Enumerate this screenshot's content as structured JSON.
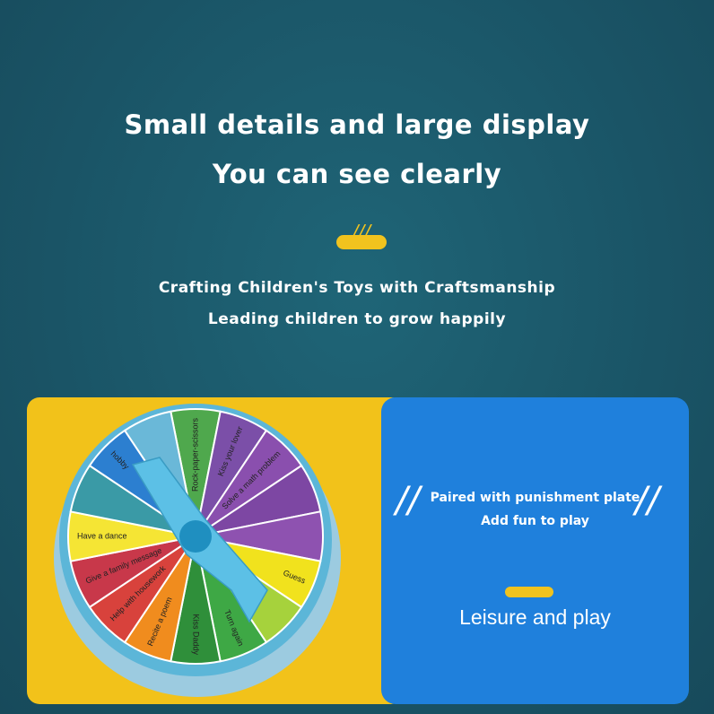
{
  "header": {
    "title_lines": [
      "Small details and large display",
      "You can see clearly"
    ],
    "mark": "///",
    "subtitle_lines": [
      "Crafting Children's Toys with Craftsmanship",
      "Leading children to grow happily"
    ]
  },
  "wheel": {
    "labels": [
      "Rock-paper-scissors",
      "Kiss your lover",
      "Solve a math problem",
      "Guess",
      "Turn again",
      "Kiss Daddy",
      "Recite a poem",
      "Help with housework",
      "Give a family message",
      "Have a dance",
      "hobby"
    ]
  },
  "card": {
    "lines": [
      "Paired with punishment plate",
      "Add fun to play"
    ],
    "caption": "Leisure and play"
  }
}
